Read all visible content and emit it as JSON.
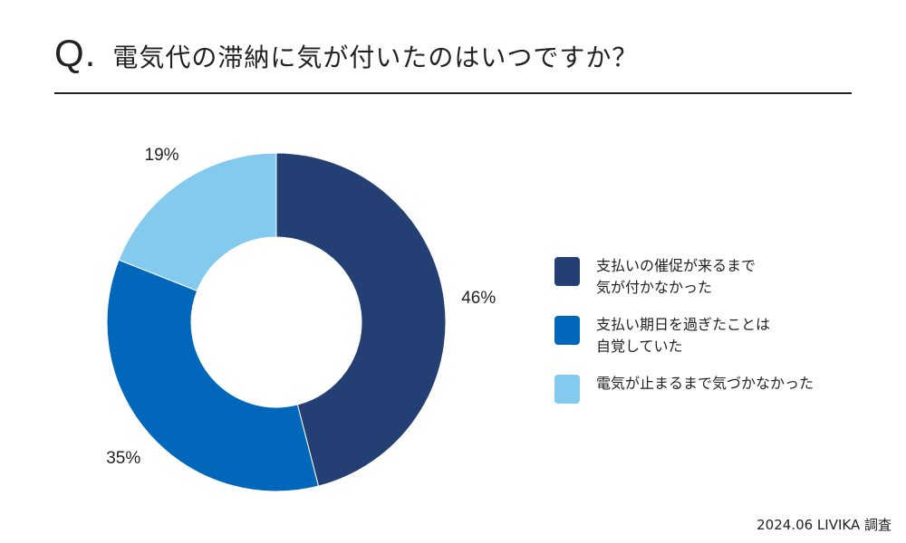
{
  "title": {
    "prefix": "Q.",
    "text": "電気代の滞納に気が付いたのはいつですか？"
  },
  "chart_data": {
    "type": "pie",
    "variant": "donut",
    "title": "電気代の滞納に気が付いたのはいつですか？",
    "unit": "%",
    "series": [
      {
        "name": "支払いの催促が来るまで\n気が付かなかった",
        "value": 46,
        "color": "#243F73"
      },
      {
        "name": "支払い期日を過ぎたことは\n自覚していた",
        "value": 35,
        "color": "#0067BA"
      },
      {
        "name": "電気が止まるまで気づかなかった",
        "value": 19,
        "color": "#84C9EE"
      }
    ],
    "legend_position": "right"
  },
  "footer": {
    "text": "2024.06 LIVIKA 調査"
  }
}
